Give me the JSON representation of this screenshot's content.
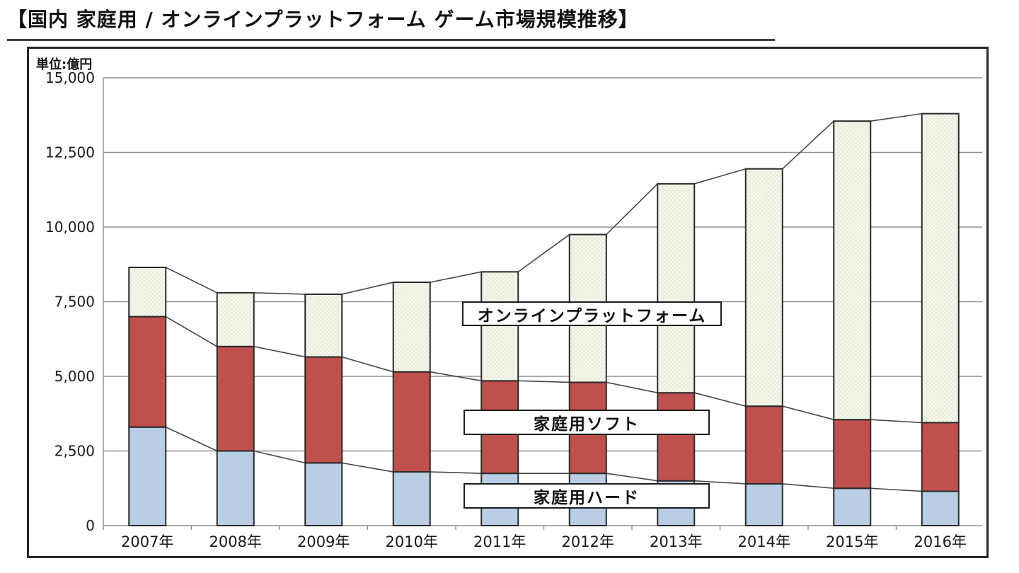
{
  "page_title": "【国内 家庭用 / オンラインプラットフォーム ゲーム市場規模推移】",
  "unit_label": "単位:億円",
  "labels": {
    "online": "オンラインプラットフォーム",
    "soft": "家庭用ソフト",
    "hard": "家庭用ハード"
  },
  "chart_data": {
    "type": "bar",
    "stacked": true,
    "title": "【国内 家庭用 / オンラインプラットフォーム ゲーム市場規模推移】",
    "unit": "億円",
    "categories": [
      "2007年",
      "2008年",
      "2009年",
      "2010年",
      "2011年",
      "2012年",
      "2013年",
      "2014年",
      "2015年",
      "2016年"
    ],
    "series": [
      {
        "name": "家庭用ハード",
        "color": "#b9cde5",
        "pattern": "solid",
        "values": [
          3300,
          2500,
          2100,
          1800,
          1750,
          1750,
          1500,
          1400,
          1250,
          1150
        ]
      },
      {
        "name": "家庭用ソフト",
        "color": "#c0504d",
        "pattern": "solid",
        "values": [
          3700,
          3500,
          3550,
          3350,
          3100,
          3050,
          2950,
          2600,
          2300,
          2300
        ]
      },
      {
        "name": "オンラインプラットフォーム",
        "color": "#ebeedb",
        "pattern": "dots",
        "values": [
          1650,
          1800,
          2100,
          3000,
          3650,
          4950,
          7000,
          7950,
          10000,
          10350
        ]
      }
    ],
    "totals": [
      8650,
      7800,
      7750,
      8150,
      8500,
      9750,
      11450,
      11950,
      13550,
      13800
    ],
    "ylabel": "単位:億円",
    "ylim": [
      0,
      15000
    ],
    "ytick_step": 2500,
    "yticks": [
      "15,000",
      "12,500",
      "10,000",
      "7,500",
      "5,000",
      "2,500",
      "0"
    ],
    "grid": true,
    "legend_position": "overlaid-labels",
    "colors": {
      "grid": "#8f8f8f",
      "bar_border": "#2a2a2a",
      "connector_line": "#474747",
      "frame_border": "#262626",
      "text": "#1a1a1a"
    }
  }
}
